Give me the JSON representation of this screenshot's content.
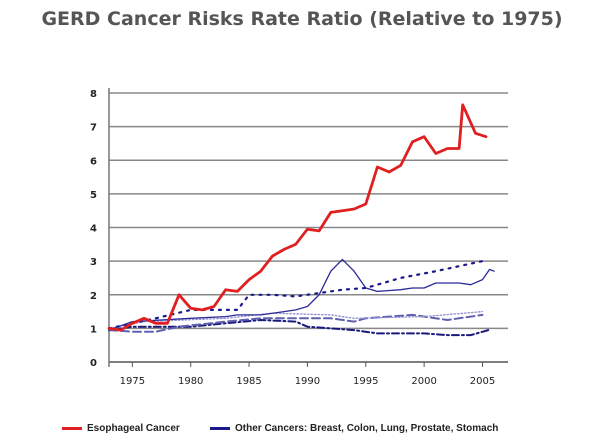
{
  "chart_data": {
    "type": "line",
    "title": "GERD Cancer Risks Rate Ratio (Relative to 1975)",
    "xlabel": "",
    "ylabel": "",
    "xlim": [
      1973,
      2006.5
    ],
    "ylim": [
      0,
      8
    ],
    "yticks": [
      "0",
      "1",
      "2",
      "3",
      "4",
      "5",
      "6",
      "7",
      "8"
    ],
    "xticks": [
      "1975",
      "1980",
      "1985",
      "1990",
      "1995",
      "2000",
      "2005"
    ],
    "grid": "horizontal",
    "legend_position": "bottom",
    "legend": [
      {
        "label": "Esophageal Cancer",
        "color": "#e02020"
      },
      {
        "label": "Other Cancers: Breast, Colon, Lung, Prostate, Stomach",
        "color": "#1a1a8c"
      }
    ],
    "series": [
      {
        "name": "Esophageal Cancer",
        "color": "#e02020",
        "style": "solid-thick",
        "x": [
          1973,
          1974,
          1975,
          1976,
          1977,
          1978,
          1979,
          1980,
          1981,
          1982,
          1983,
          1984,
          1985,
          1986,
          1987,
          1988,
          1989,
          1990,
          1991,
          1992,
          1993,
          1994,
          1995,
          1996,
          1997,
          1998,
          1999,
          2000,
          2001,
          2002,
          2003,
          2003.3,
          2004.4,
          2005.3
        ],
        "y": [
          1.0,
          0.95,
          1.15,
          1.3,
          1.15,
          1.15,
          2.0,
          1.6,
          1.55,
          1.65,
          2.15,
          2.1,
          2.45,
          2.7,
          3.15,
          3.35,
          3.5,
          3.95,
          3.9,
          4.45,
          4.5,
          4.55,
          4.7,
          5.8,
          5.65,
          5.85,
          6.55,
          6.7,
          6.2,
          6.35,
          6.35,
          7.65,
          6.8,
          6.7
        ]
      },
      {
        "color": "#2a2a9a",
        "style": "solid",
        "x": [
          1973,
          1975,
          1980,
          1983,
          1984,
          1986,
          1988,
          1989,
          1990,
          1991,
          1992,
          1993,
          1994,
          1995,
          1996,
          1998,
          1999,
          2000,
          2001,
          2003,
          2004,
          2005,
          2005.6,
          2006
        ],
        "y": [
          0.95,
          1.2,
          1.3,
          1.35,
          1.4,
          1.4,
          1.5,
          1.55,
          1.65,
          2.0,
          2.7,
          3.05,
          2.7,
          2.2,
          2.1,
          2.15,
          2.2,
          2.2,
          2.35,
          2.35,
          2.3,
          2.45,
          2.75,
          2.7
        ]
      },
      {
        "color": "#1a1a8c",
        "style": "dotted",
        "x": [
          1973,
          1977,
          1980,
          1984,
          1985,
          1987,
          1989,
          1991,
          1993,
          1995,
          1998,
          2001,
          2005
        ],
        "y": [
          1.0,
          1.3,
          1.55,
          1.55,
          2.0,
          2.0,
          1.95,
          2.05,
          2.15,
          2.2,
          2.5,
          2.7,
          3.0
        ]
      },
      {
        "color": "#9090d0",
        "style": "light-dotted",
        "x": [
          1973,
          1976,
          1983,
          1987,
          1992,
          1994,
          2000,
          2005
        ],
        "y": [
          1.0,
          1.2,
          1.3,
          1.45,
          1.4,
          1.3,
          1.35,
          1.5
        ]
      },
      {
        "color": "#6060b0",
        "style": "dashed",
        "x": [
          1973,
          1975,
          1977,
          1979,
          1983,
          1986,
          1992,
          1994,
          1995,
          1999,
          2002,
          2003,
          2005
        ],
        "y": [
          0.95,
          0.9,
          0.9,
          1.05,
          1.2,
          1.3,
          1.3,
          1.2,
          1.3,
          1.4,
          1.25,
          1.3,
          1.4
        ]
      },
      {
        "color": "#1a1a7c",
        "style": "dash-dot",
        "x": [
          1973,
          1975,
          1980,
          1983,
          1986,
          1989,
          1990,
          1992,
          1994,
          1996,
          2000,
          2002,
          2004,
          2005.5
        ],
        "y": [
          0.95,
          1.05,
          1.05,
          1.15,
          1.25,
          1.2,
          1.05,
          1.0,
          0.95,
          0.85,
          0.85,
          0.8,
          0.8,
          0.95
        ]
      }
    ]
  }
}
